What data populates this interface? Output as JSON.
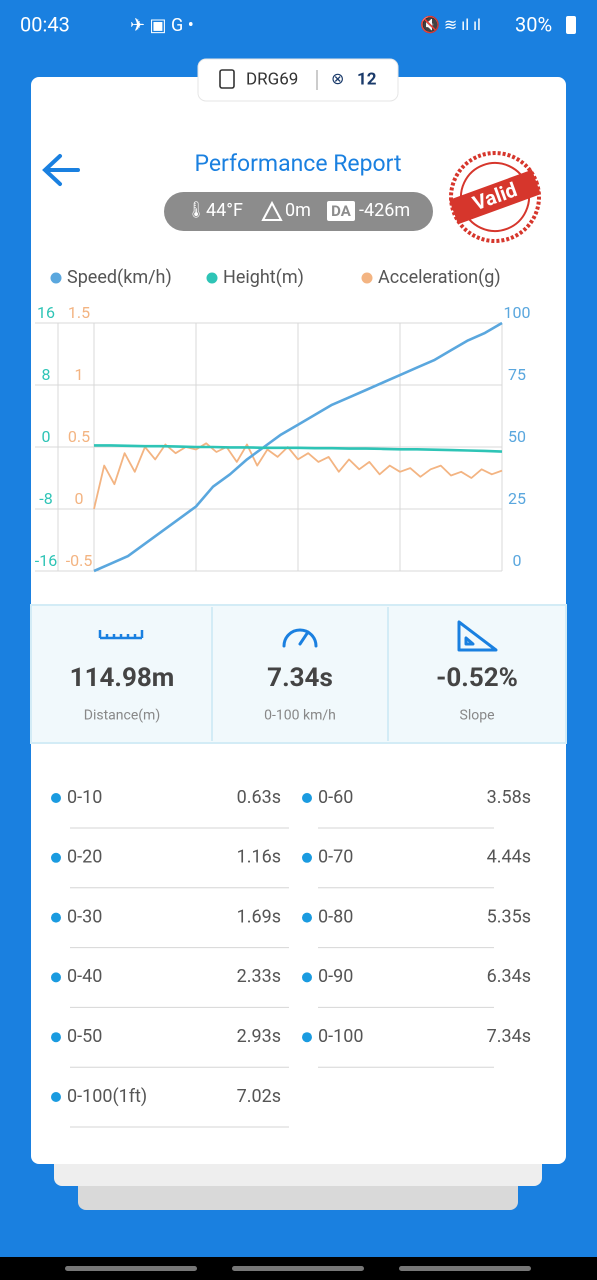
{
  "status_bar": {
    "time": "00:43",
    "battery": "30%"
  },
  "device": {
    "name": "DRG69",
    "satellites": "12"
  },
  "header": {
    "title": "Performance Report",
    "temperature": "44°F",
    "elevation": "0m",
    "da_label": "DA",
    "density_altitude": "-426m",
    "stamp": "Valid"
  },
  "chart_data": {
    "type": "line",
    "series": [
      {
        "name": "Speed(km/h)",
        "color": "#5aa7de",
        "axis": "y2",
        "values": [
          0,
          3,
          6,
          11,
          16,
          21,
          26,
          34,
          39,
          45,
          50,
          55,
          59,
          63,
          67,
          70,
          73,
          76,
          79,
          82,
          85,
          89,
          93,
          96,
          100
        ]
      },
      {
        "name": "Height(m)",
        "color": "#2ec4b6",
        "axis": "y",
        "values": [
          0.2,
          0.2,
          0.15,
          0.1,
          0.1,
          0.05,
          0,
          0,
          -0.05,
          -0.05,
          -0.1,
          -0.1,
          -0.1,
          -0.15,
          -0.15,
          -0.2,
          -0.2,
          -0.25,
          -0.3,
          -0.3,
          -0.35,
          -0.4,
          -0.45,
          -0.5,
          -0.6
        ]
      },
      {
        "name": "Acceleration(g)",
        "color": "#f3b482",
        "axis": "y3",
        "values": [
          0,
          0.35,
          0.2,
          0.45,
          0.3,
          0.5,
          0.4,
          0.52,
          0.45,
          0.5,
          0.48,
          0.53,
          0.46,
          0.5,
          0.38,
          0.52,
          0.35,
          0.48,
          0.42,
          0.5,
          0.4,
          0.45,
          0.38,
          0.42,
          0.3,
          0.4,
          0.32,
          0.38,
          0.28,
          0.35,
          0.3,
          0.33,
          0.26,
          0.32,
          0.35,
          0.27,
          0.3,
          0.25,
          0.32,
          0.28,
          0.31
        ]
      }
    ],
    "ylim": [
      -16,
      16
    ],
    "yticks": [
      -16,
      -8,
      0,
      8,
      16
    ],
    "y2lim": [
      0,
      100
    ],
    "y2ticks": [
      0,
      25,
      50,
      75,
      100
    ],
    "y3lim": [
      -0.5,
      1.5
    ],
    "y3ticks": [
      -0.5,
      0,
      0.5,
      1,
      1.5
    ],
    "grid": true
  },
  "metrics": [
    {
      "value": "114.98m",
      "label": "Distance(m)"
    },
    {
      "value": "7.34s",
      "label": "0-100 km/h"
    },
    {
      "value": "-0.52%",
      "label": "Slope"
    }
  ],
  "splits": {
    "left": [
      {
        "label": "0-10",
        "time": "0.63s"
      },
      {
        "label": "0-20",
        "time": "1.16s"
      },
      {
        "label": "0-30",
        "time": "1.69s"
      },
      {
        "label": "0-40",
        "time": "2.33s"
      },
      {
        "label": "0-50",
        "time": "2.93s"
      },
      {
        "label": "0-100(1ft)",
        "time": "7.02s"
      }
    ],
    "right": [
      {
        "label": "0-60",
        "time": "3.58s"
      },
      {
        "label": "0-70",
        "time": "4.44s"
      },
      {
        "label": "0-80",
        "time": "5.35s"
      },
      {
        "label": "0-90",
        "time": "6.34s"
      },
      {
        "label": "0-100",
        "time": "7.34s"
      }
    ]
  }
}
